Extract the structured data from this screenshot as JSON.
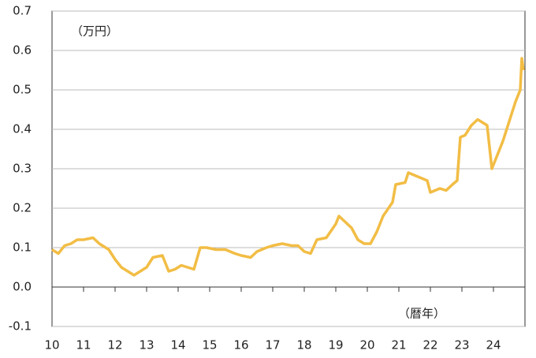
{
  "chart_data": {
    "type": "line",
    "unit_label": "（万円）",
    "x_label": "（暦年）",
    "xlim": [
      10,
      25
    ],
    "xticks": [
      10,
      11,
      12,
      13,
      14,
      15,
      16,
      17,
      18,
      19,
      20,
      21,
      22,
      23,
      24
    ],
    "ylim": [
      -0.1,
      0.7
    ],
    "yticks": [
      -0.1,
      {
        "value": 0,
        "label": "0.0"
      },
      0.1,
      0.2,
      0.3,
      0.4,
      0.5,
      0.6,
      0.7
    ],
    "grid": true,
    "series": [
      {
        "color": "#f2bd45",
        "x": [
          10.0,
          10.2,
          10.4,
          10.6,
          10.8,
          11.0,
          11.3,
          11.5,
          11.8,
          12.0,
          12.2,
          12.4,
          12.6,
          12.8,
          13.0,
          13.2,
          13.5,
          13.7,
          13.9,
          14.1,
          14.3,
          14.5,
          14.7,
          14.9,
          15.2,
          15.5,
          15.8,
          16.0,
          16.3,
          16.5,
          16.8,
          17.0,
          17.3,
          17.6,
          17.8,
          18.0,
          18.2,
          18.4,
          18.7,
          19.0,
          19.1,
          19.3,
          19.5,
          19.7,
          19.9,
          20.1,
          20.3,
          20.5,
          20.8,
          20.9,
          21.2,
          21.3,
          21.6,
          21.9,
          22.0,
          22.3,
          22.5,
          22.7,
          22.85,
          22.95,
          23.1,
          23.3,
          23.5,
          23.8,
          23.95,
          24.1,
          24.3,
          24.5,
          24.7,
          24.85,
          24.9,
          24.95
        ],
        "values": [
          0.095,
          0.085,
          0.105,
          0.11,
          0.12,
          0.12,
          0.125,
          0.11,
          0.095,
          0.07,
          0.05,
          0.04,
          0.03,
          0.04,
          0.05,
          0.075,
          0.08,
          0.04,
          0.045,
          0.055,
          0.05,
          0.045,
          0.1,
          0.1,
          0.095,
          0.095,
          0.085,
          0.08,
          0.075,
          0.09,
          0.1,
          0.105,
          0.11,
          0.105,
          0.105,
          0.09,
          0.085,
          0.12,
          0.125,
          0.16,
          0.18,
          0.165,
          0.15,
          0.12,
          0.11,
          0.11,
          0.14,
          0.18,
          0.215,
          0.26,
          0.265,
          0.29,
          0.28,
          0.27,
          0.24,
          0.25,
          0.245,
          0.26,
          0.27,
          0.38,
          0.385,
          0.41,
          0.425,
          0.41,
          0.3,
          0.33,
          0.37,
          0.42,
          0.47,
          0.5,
          0.58,
          0.55
        ]
      }
    ]
  }
}
